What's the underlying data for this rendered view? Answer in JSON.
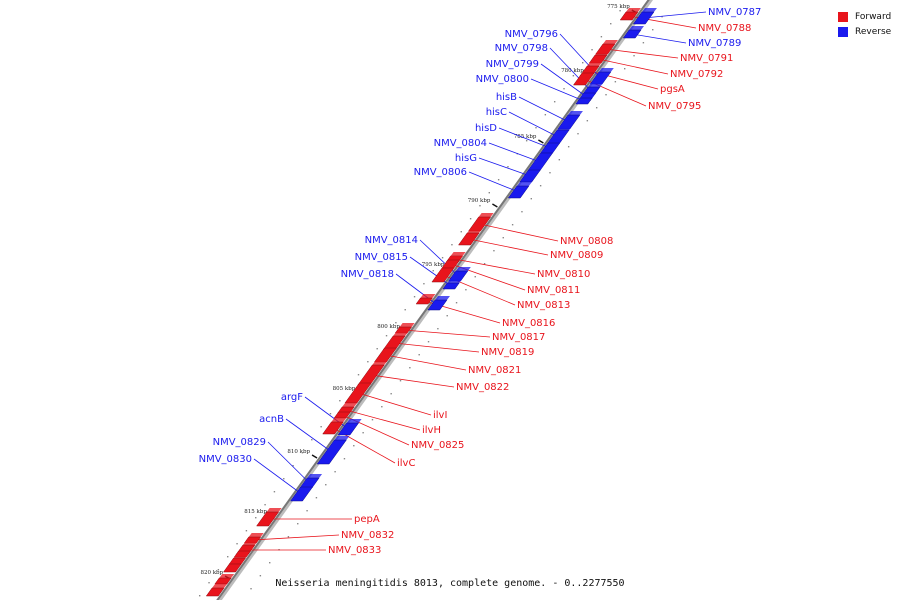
{
  "caption": "Neisseria meningitidis 8013, complete genome. - 0..2277550",
  "legend": [
    {
      "label": "Forward",
      "color": "#e8141c"
    },
    {
      "label": "Reverse",
      "color": "#1a1aee"
    }
  ],
  "axis": {
    "ticks": [
      "775 kbp",
      "780 kbp",
      "785 kbp",
      "790 kbp",
      "795 kbp",
      "800 kbp",
      "805 kbp",
      "810 kbp",
      "815 kbp",
      "820 kbp"
    ]
  },
  "genes": [
    {
      "name": "NMV_0787",
      "strand": "reverse"
    },
    {
      "name": "NMV_0788",
      "strand": "forward"
    },
    {
      "name": "NMV_0789",
      "strand": "reverse"
    },
    {
      "name": "NMV_0791",
      "strand": "forward"
    },
    {
      "name": "NMV_0792",
      "strand": "forward"
    },
    {
      "name": "pgsA",
      "strand": "forward"
    },
    {
      "name": "NMV_0795",
      "strand": "forward"
    },
    {
      "name": "NMV_0796",
      "strand": "reverse"
    },
    {
      "name": "NMV_0798",
      "strand": "reverse"
    },
    {
      "name": "NMV_0799",
      "strand": "reverse"
    },
    {
      "name": "NMV_0800",
      "strand": "reverse"
    },
    {
      "name": "hisB",
      "strand": "reverse"
    },
    {
      "name": "hisC",
      "strand": "reverse"
    },
    {
      "name": "hisD",
      "strand": "reverse"
    },
    {
      "name": "NMV_0804",
      "strand": "reverse"
    },
    {
      "name": "hisG",
      "strand": "reverse"
    },
    {
      "name": "NMV_0806",
      "strand": "reverse"
    },
    {
      "name": "NMV_0808",
      "strand": "forward"
    },
    {
      "name": "NMV_0809",
      "strand": "forward"
    },
    {
      "name": "NMV_0810",
      "strand": "forward"
    },
    {
      "name": "NMV_0811",
      "strand": "forward"
    },
    {
      "name": "NMV_0813",
      "strand": "forward"
    },
    {
      "name": "NMV_0814",
      "strand": "reverse"
    },
    {
      "name": "NMV_0815",
      "strand": "reverse"
    },
    {
      "name": "NMV_0818",
      "strand": "reverse"
    },
    {
      "name": "NMV_0816",
      "strand": "forward"
    },
    {
      "name": "NMV_0817",
      "strand": "forward"
    },
    {
      "name": "NMV_0819",
      "strand": "forward"
    },
    {
      "name": "NMV_0821",
      "strand": "forward"
    },
    {
      "name": "NMV_0822",
      "strand": "forward"
    },
    {
      "name": "argF",
      "strand": "reverse"
    },
    {
      "name": "acnB",
      "strand": "reverse"
    },
    {
      "name": "NMV_0829",
      "strand": "reverse"
    },
    {
      "name": "NMV_0830",
      "strand": "reverse"
    },
    {
      "name": "ilvI",
      "strand": "forward"
    },
    {
      "name": "ilvH",
      "strand": "forward"
    },
    {
      "name": "NMV_0825",
      "strand": "forward"
    },
    {
      "name": "ilvC",
      "strand": "forward"
    },
    {
      "name": "pepA",
      "strand": "forward"
    },
    {
      "name": "NMV_0832",
      "strand": "forward"
    },
    {
      "name": "NMV_0833",
      "strand": "forward"
    }
  ]
}
